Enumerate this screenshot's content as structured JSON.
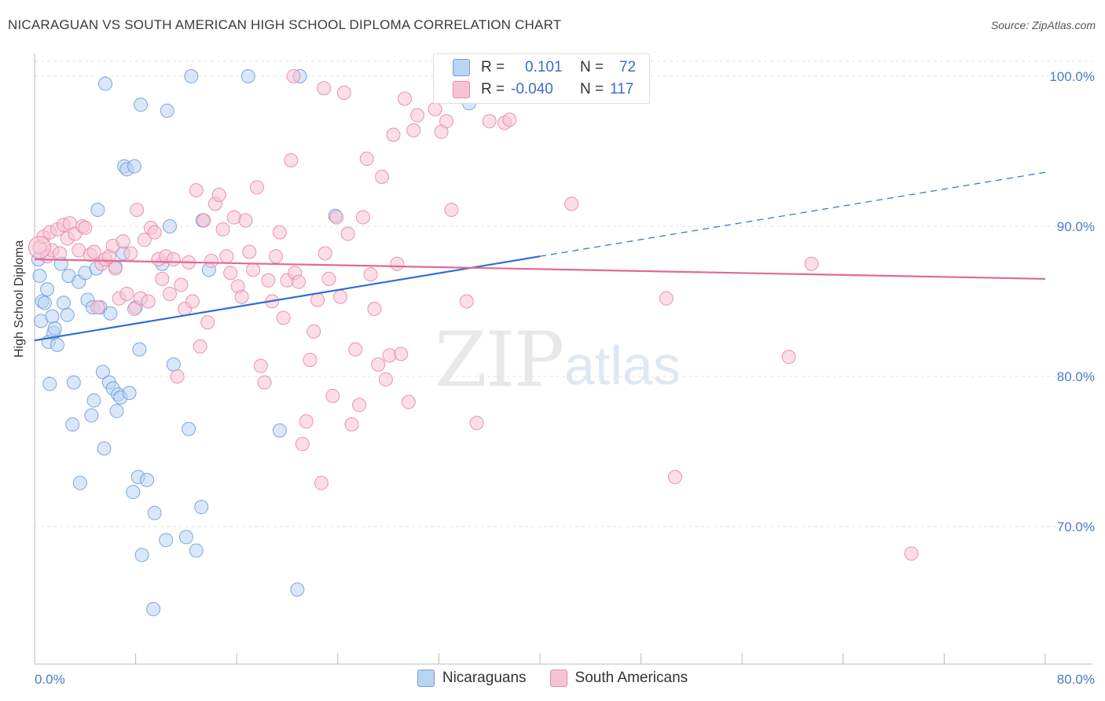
{
  "header": {
    "title": "NICARAGUAN VS SOUTH AMERICAN HIGH SCHOOL DIPLOMA CORRELATION CHART",
    "source": "Source: ZipAtlas.com"
  },
  "watermark": {
    "part1": "ZIP",
    "part2": "atlas"
  },
  "legend": {
    "r_label": "R =",
    "n_label": "N =",
    "rows": [
      {
        "r": "0.101",
        "n": "72"
      },
      {
        "r": "-0.040",
        "n": "117"
      }
    ]
  },
  "colors": {
    "blue_fill": "#b9d3f3",
    "blue_stroke": "#6f9fdb",
    "blue_line": "#2c6fd0",
    "pink_fill": "#f7c3d3",
    "pink_stroke": "#e88aa8",
    "pink_line": "#e06a93",
    "tick_text": "#4a7cc9",
    "grid": "#e3e3e3"
  },
  "chart_data": {
    "type": "scatter",
    "xlabel": "",
    "ylabel": "High School Diploma",
    "xlim": [
      0,
      80
    ],
    "ylim": [
      60,
      100
    ],
    "x_tick_labels": [
      "0.0%",
      "80.0%"
    ],
    "y_ticks": [
      70,
      80,
      90,
      100
    ],
    "y_tick_labels": [
      "70.0%",
      "80.0%",
      "90.0%",
      "100.0%"
    ],
    "grid": true,
    "legend_placement": "top-center",
    "series": [
      {
        "name": "Nicaraguans",
        "color": "#6f9fdb",
        "trend": {
          "x": [
            0,
            40
          ],
          "y": [
            82.4,
            88.0
          ],
          "dashed_to": [
            80,
            93.6
          ]
        },
        "points": [
          [
            0.3,
            87.8
          ],
          [
            0.4,
            86.7
          ],
          [
            0.5,
            83.7
          ],
          [
            0.6,
            85.0
          ],
          [
            0.8,
            84.9
          ],
          [
            1.0,
            85.8
          ],
          [
            1.1,
            82.3
          ],
          [
            1.2,
            79.5
          ],
          [
            1.4,
            84.0
          ],
          [
            1.5,
            82.9
          ],
          [
            1.6,
            83.2
          ],
          [
            1.8,
            82.1
          ],
          [
            2.1,
            87.5
          ],
          [
            2.3,
            84.9
          ],
          [
            2.6,
            84.1
          ],
          [
            2.7,
            86.7
          ],
          [
            3.0,
            76.8
          ],
          [
            3.1,
            79.6
          ],
          [
            3.5,
            86.3
          ],
          [
            3.6,
            72.9
          ],
          [
            4.0,
            86.9
          ],
          [
            4.2,
            85.1
          ],
          [
            4.5,
            77.4
          ],
          [
            4.6,
            84.6
          ],
          [
            4.7,
            78.4
          ],
          [
            4.9,
            87.2
          ],
          [
            5.0,
            91.1
          ],
          [
            5.2,
            84.6
          ],
          [
            5.4,
            80.3
          ],
          [
            5.5,
            75.2
          ],
          [
            5.6,
            99.5
          ],
          [
            5.9,
            79.6
          ],
          [
            6.0,
            84.2
          ],
          [
            6.2,
            79.2
          ],
          [
            6.4,
            87.3
          ],
          [
            6.5,
            77.7
          ],
          [
            6.6,
            78.8
          ],
          [
            6.8,
            78.6
          ],
          [
            7.0,
            88.2
          ],
          [
            7.1,
            94.0
          ],
          [
            7.3,
            93.8
          ],
          [
            7.5,
            78.9
          ],
          [
            7.8,
            72.3
          ],
          [
            7.9,
            94.0
          ],
          [
            8.0,
            84.6
          ],
          [
            8.2,
            73.3
          ],
          [
            8.3,
            81.8
          ],
          [
            8.4,
            98.1
          ],
          [
            8.5,
            68.1
          ],
          [
            8.9,
            73.1
          ],
          [
            9.4,
            64.5
          ],
          [
            9.5,
            70.9
          ],
          [
            10.1,
            87.5
          ],
          [
            10.4,
            69.1
          ],
          [
            10.5,
            97.7
          ],
          [
            10.7,
            90.0
          ],
          [
            11.0,
            80.8
          ],
          [
            12.0,
            69.3
          ],
          [
            12.2,
            76.5
          ],
          [
            12.4,
            100.0
          ],
          [
            12.8,
            68.4
          ],
          [
            13.2,
            71.3
          ],
          [
            13.3,
            90.4
          ],
          [
            13.8,
            87.1
          ],
          [
            16.9,
            100.0
          ],
          [
            19.4,
            76.4
          ],
          [
            20.8,
            65.8
          ],
          [
            21.0,
            100.0
          ],
          [
            23.8,
            90.7
          ],
          [
            34.4,
            98.2
          ],
          [
            35.0,
            98.8
          ],
          [
            36.0,
            99.2
          ]
        ]
      },
      {
        "name": "South Americans",
        "color": "#e88aa8",
        "trend": {
          "x": [
            0,
            80
          ],
          "y": [
            87.8,
            86.5
          ]
        },
        "points": [
          [
            0.4,
            88.6
          ],
          [
            0.7,
            89.3
          ],
          [
            1.0,
            88.0
          ],
          [
            1.2,
            89.6
          ],
          [
            1.4,
            88.4
          ],
          [
            1.8,
            89.8
          ],
          [
            2.0,
            88.2
          ],
          [
            2.3,
            90.1
          ],
          [
            2.6,
            89.2
          ],
          [
            2.8,
            90.2
          ],
          [
            3.2,
            89.5
          ],
          [
            3.5,
            88.4
          ],
          [
            3.8,
            90.0
          ],
          [
            4.0,
            89.9
          ],
          [
            4.4,
            88.1
          ],
          [
            4.7,
            88.3
          ],
          [
            5.0,
            84.6
          ],
          [
            5.3,
            87.5
          ],
          [
            5.6,
            87.8
          ],
          [
            5.9,
            88.0
          ],
          [
            6.2,
            88.7
          ],
          [
            6.4,
            87.2
          ],
          [
            6.7,
            85.2
          ],
          [
            7.0,
            89.0
          ],
          [
            7.3,
            85.5
          ],
          [
            7.6,
            88.2
          ],
          [
            7.9,
            84.5
          ],
          [
            8.1,
            91.1
          ],
          [
            8.4,
            85.2
          ],
          [
            8.7,
            89.1
          ],
          [
            9.0,
            85.0
          ],
          [
            9.2,
            89.9
          ],
          [
            9.5,
            89.6
          ],
          [
            9.8,
            87.8
          ],
          [
            10.1,
            86.5
          ],
          [
            10.4,
            88.0
          ],
          [
            10.7,
            85.5
          ],
          [
            11.0,
            87.8
          ],
          [
            11.3,
            80.0
          ],
          [
            11.6,
            86.1
          ],
          [
            11.9,
            84.5
          ],
          [
            12.2,
            87.6
          ],
          [
            12.5,
            85.0
          ],
          [
            12.8,
            92.4
          ],
          [
            13.1,
            82.0
          ],
          [
            13.4,
            90.4
          ],
          [
            13.7,
            83.6
          ],
          [
            14.0,
            87.7
          ],
          [
            14.3,
            91.5
          ],
          [
            14.6,
            92.1
          ],
          [
            14.9,
            89.8
          ],
          [
            15.2,
            88.0
          ],
          [
            15.5,
            86.9
          ],
          [
            15.8,
            90.6
          ],
          [
            16.1,
            86.0
          ],
          [
            16.4,
            85.3
          ],
          [
            16.7,
            90.4
          ],
          [
            17.0,
            88.3
          ],
          [
            17.3,
            87.1
          ],
          [
            17.6,
            92.6
          ],
          [
            17.9,
            80.7
          ],
          [
            18.2,
            79.6
          ],
          [
            18.5,
            86.4
          ],
          [
            18.8,
            85.0
          ],
          [
            19.1,
            88.0
          ],
          [
            19.4,
            89.6
          ],
          [
            19.7,
            83.9
          ],
          [
            20.0,
            86.4
          ],
          [
            20.3,
            94.4
          ],
          [
            20.6,
            86.9
          ],
          [
            20.9,
            86.3
          ],
          [
            21.2,
            75.5
          ],
          [
            21.5,
            77.0
          ],
          [
            21.8,
            81.1
          ],
          [
            22.1,
            83.0
          ],
          [
            22.4,
            85.1
          ],
          [
            22.7,
            72.9
          ],
          [
            23.0,
            88.2
          ],
          [
            23.3,
            86.5
          ],
          [
            23.6,
            78.7
          ],
          [
            23.9,
            90.6
          ],
          [
            24.2,
            85.3
          ],
          [
            24.5,
            98.9
          ],
          [
            24.8,
            89.5
          ],
          [
            25.1,
            76.8
          ],
          [
            25.4,
            81.8
          ],
          [
            25.7,
            78.1
          ],
          [
            26.0,
            90.6
          ],
          [
            26.3,
            94.5
          ],
          [
            26.6,
            86.8
          ],
          [
            26.9,
            84.5
          ],
          [
            27.2,
            80.8
          ],
          [
            27.5,
            93.3
          ],
          [
            27.8,
            79.8
          ],
          [
            28.1,
            81.4
          ],
          [
            28.4,
            96.1
          ],
          [
            28.7,
            87.5
          ],
          [
            29.0,
            81.5
          ],
          [
            29.3,
            98.5
          ],
          [
            29.6,
            78.3
          ],
          [
            30.0,
            96.4
          ],
          [
            30.3,
            97.4
          ],
          [
            31.7,
            97.8
          ],
          [
            32.2,
            96.3
          ],
          [
            32.6,
            97.0
          ],
          [
            33.0,
            91.1
          ],
          [
            34.2,
            85.0
          ],
          [
            35.0,
            76.9
          ],
          [
            36.0,
            97.0
          ],
          [
            37.2,
            96.9
          ],
          [
            37.6,
            97.1
          ],
          [
            42.5,
            91.5
          ],
          [
            50.0,
            85.2
          ],
          [
            50.7,
            73.3
          ],
          [
            59.7,
            81.3
          ],
          [
            61.5,
            87.5
          ],
          [
            69.4,
            68.2
          ],
          [
            22.9,
            99.2
          ],
          [
            20.5,
            100.0
          ]
        ]
      }
    ]
  },
  "bottom_legend": {
    "items": [
      {
        "label": "Nicaraguans"
      },
      {
        "label": "South Americans"
      }
    ]
  }
}
